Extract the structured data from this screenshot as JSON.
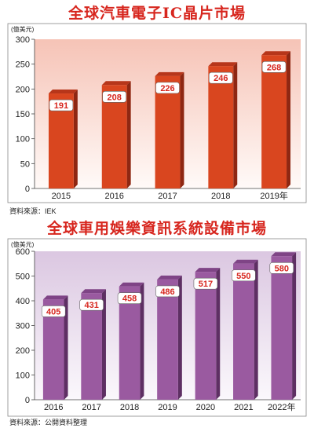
{
  "chart_data": [
    {
      "type": "bar",
      "title": "全球汽車電子IC晶片市場",
      "unit": "(億美元)",
      "categories": [
        "2015",
        "2016",
        "2017",
        "2018",
        "2019年"
      ],
      "values": [
        191,
        208,
        226,
        246,
        268
      ],
      "ylim": [
        0,
        300
      ],
      "yticks": [
        0,
        50,
        100,
        150,
        200,
        250,
        300
      ],
      "source": "資料來源：IEK",
      "colors": {
        "bar": "#d9461f",
        "bar_top": "#b7361a",
        "bar_side": "#8e2712",
        "plot_top": "#f6c3b6",
        "plot_bottom": "#fffaf8"
      }
    },
    {
      "type": "bar",
      "title": "全球車用娛樂資訊系統設備市場",
      "unit": "(億美元)",
      "categories": [
        "2016",
        "2017",
        "2018",
        "2019",
        "2020",
        "2021",
        "2022年"
      ],
      "values": [
        405,
        431,
        458,
        486,
        517,
        550,
        580
      ],
      "ylim": [
        0,
        600
      ],
      "yticks": [
        0,
        100,
        200,
        300,
        400,
        500,
        600
      ],
      "source": "資料來源：公開資料整理",
      "colors": {
        "bar": "#9a5aa0",
        "bar_top": "#7f4486",
        "bar_side": "#5e2f63",
        "plot_top": "#dbc7e1",
        "plot_bottom": "#fbf8fc"
      }
    }
  ]
}
